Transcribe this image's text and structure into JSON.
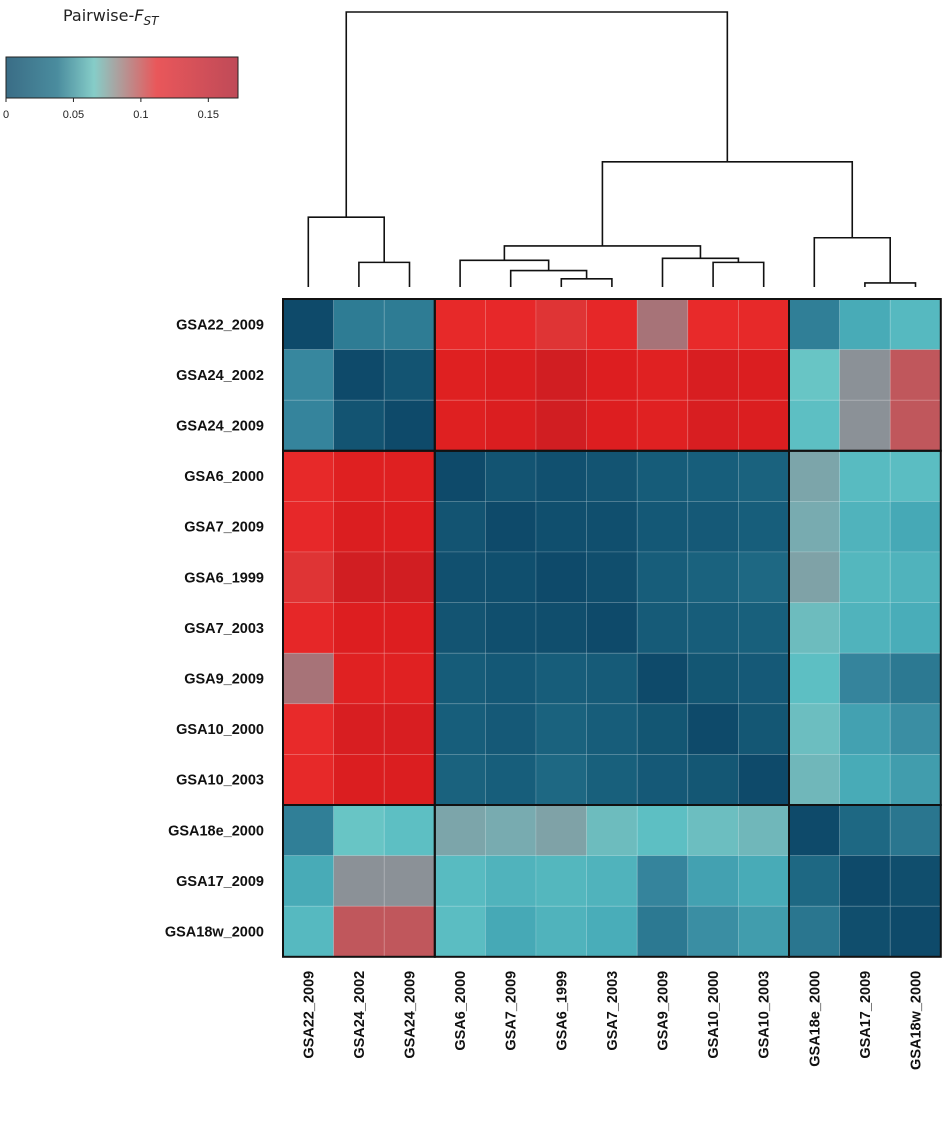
{
  "chart_data": {
    "type": "heatmap",
    "title": "",
    "legend": {
      "title_prefix": "Pairwise-",
      "title_symbol": "F",
      "title_subscript": "ST",
      "ticks": [
        "0",
        "0.05",
        "0.1",
        "0.15"
      ],
      "tick_values": [
        0,
        0.05,
        0.1,
        0.15
      ],
      "range": [
        0,
        0.172
      ],
      "placement": "top-left",
      "colors": [
        "#3a6d86",
        "#4a8c9e",
        "#86cdc8",
        "#e9575a",
        "#bf4a58"
      ]
    },
    "row_labels": [
      "GSA22_2009",
      "GSA24_2002",
      "GSA24_2009",
      "GSA6_2000",
      "GSA7_2009",
      "GSA6_1999",
      "GSA7_2003",
      "GSA9_2009",
      "GSA10_2000",
      "GSA10_2003",
      "GSA18e_2000",
      "GSA17_2009",
      "GSA18w_2000"
    ],
    "col_labels": [
      "GSA22_2009",
      "GSA24_2002",
      "GSA24_2009",
      "GSA6_2000",
      "GSA7_2009",
      "GSA6_1999",
      "GSA7_2003",
      "GSA9_2009",
      "GSA10_2000",
      "GSA10_2003",
      "GSA18e_2000",
      "GSA17_2009",
      "GSA18w_2000"
    ],
    "clusters": [
      {
        "name": "cluster-1",
        "members": [
          0,
          1,
          2
        ]
      },
      {
        "name": "cluster-2",
        "members": [
          3,
          4,
          5,
          6,
          7,
          8,
          9
        ]
      },
      {
        "name": "cluster-3",
        "members": [
          10,
          11,
          12
        ]
      }
    ],
    "dendrogram": {
      "merges": [
        {
          "id": "m1",
          "left": "leaf:1",
          "right": "leaf:2",
          "height": 0.012
        },
        {
          "id": "m2",
          "left": "leaf:0",
          "right": "m1",
          "height": 0.034
        },
        {
          "id": "m3",
          "left": "leaf:5",
          "right": "leaf:6",
          "height": 0.004
        },
        {
          "id": "m4",
          "left": "leaf:4",
          "right": "m3",
          "height": 0.008
        },
        {
          "id": "m5",
          "left": "leaf:3",
          "right": "m4",
          "height": 0.013
        },
        {
          "id": "m6",
          "left": "leaf:8",
          "right": "leaf:9",
          "height": 0.012
        },
        {
          "id": "m7",
          "left": "leaf:7",
          "right": "m6",
          "height": 0.014
        },
        {
          "id": "m8",
          "left": "m5",
          "right": "m7",
          "height": 0.02
        },
        {
          "id": "m9",
          "left": "leaf:11",
          "right": "leaf:12",
          "height": 0.002
        },
        {
          "id": "m10",
          "left": "leaf:10",
          "right": "m9",
          "height": 0.024
        },
        {
          "id": "m11",
          "left": "m8",
          "right": "m10",
          "height": 0.061
        },
        {
          "id": "m12",
          "left": "m2",
          "right": "m11",
          "height": 0.134
        }
      ]
    },
    "values": [
      [
        0.0,
        0.027,
        0.027,
        0.118,
        0.12,
        0.114,
        0.122,
        0.095,
        0.117,
        0.118,
        0.028,
        0.046,
        0.053
      ],
      [
        0.031,
        0.0,
        0.008,
        0.135,
        0.14,
        0.148,
        0.138,
        0.133,
        0.142,
        0.14,
        0.062,
        0.085,
        0.104
      ],
      [
        0.03,
        0.008,
        0.0,
        0.135,
        0.14,
        0.148,
        0.138,
        0.133,
        0.142,
        0.14,
        0.056,
        0.085,
        0.104
      ],
      [
        0.118,
        0.135,
        0.135,
        0.0,
        0.008,
        0.005,
        0.008,
        0.014,
        0.016,
        0.018,
        0.079,
        0.054,
        0.055
      ],
      [
        0.12,
        0.14,
        0.138,
        0.008,
        0.0,
        0.004,
        0.004,
        0.011,
        0.012,
        0.016,
        0.077,
        0.05,
        0.045
      ],
      [
        0.114,
        0.148,
        0.148,
        0.005,
        0.004,
        0.0,
        0.003,
        0.015,
        0.018,
        0.02,
        0.08,
        0.052,
        0.05
      ],
      [
        0.122,
        0.138,
        0.138,
        0.008,
        0.004,
        0.003,
        0.0,
        0.013,
        0.015,
        0.017,
        0.067,
        0.05,
        0.047
      ],
      [
        0.095,
        0.133,
        0.133,
        0.014,
        0.011,
        0.015,
        0.013,
        0.0,
        0.009,
        0.012,
        0.056,
        0.03,
        0.026
      ],
      [
        0.117,
        0.142,
        0.142,
        0.016,
        0.012,
        0.018,
        0.015,
        0.009,
        0.0,
        0.01,
        0.066,
        0.042,
        0.034
      ],
      [
        0.118,
        0.14,
        0.14,
        0.018,
        0.016,
        0.02,
        0.017,
        0.012,
        0.01,
        0.0,
        0.07,
        0.046,
        0.04
      ],
      [
        0.028,
        0.062,
        0.056,
        0.079,
        0.077,
        0.08,
        0.067,
        0.056,
        0.066,
        0.07,
        0.0,
        0.02,
        0.025
      ],
      [
        0.046,
        0.085,
        0.085,
        0.054,
        0.05,
        0.052,
        0.05,
        0.03,
        0.042,
        0.046,
        0.02,
        0.0,
        0.003
      ],
      [
        0.053,
        0.104,
        0.104,
        0.055,
        0.045,
        0.05,
        0.047,
        0.026,
        0.034,
        0.04,
        0.025,
        0.003,
        0.0
      ]
    ]
  }
}
